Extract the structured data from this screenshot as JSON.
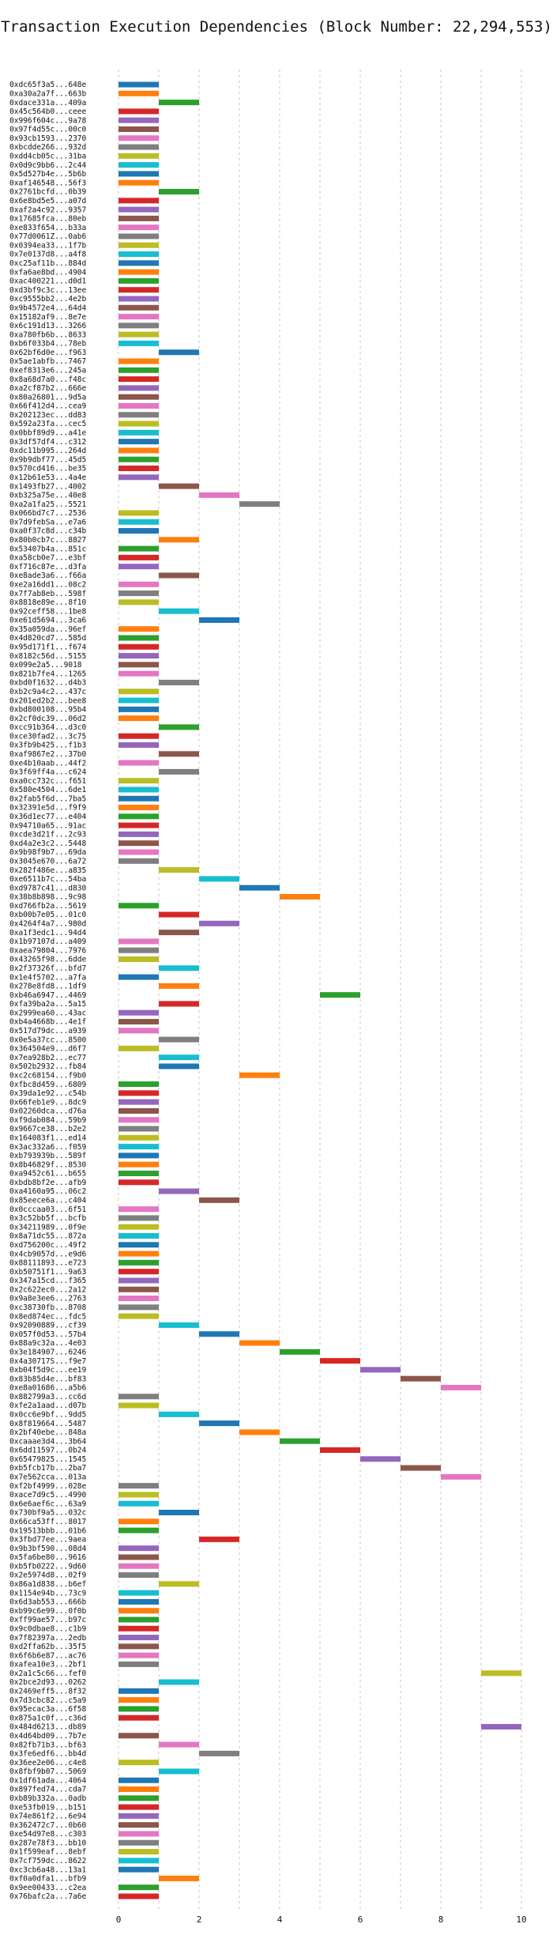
{
  "chart_data": {
    "type": "bar",
    "orientation": "horizontal-timeline",
    "title": "Transaction Execution Dependencies (Block Number: 22,294,553)",
    "xlabel": "",
    "ylabel": "",
    "xlim": [
      0,
      10
    ],
    "x_ticks": [
      0,
      2,
      4,
      6,
      8,
      10
    ],
    "grid": "vertical, dashed",
    "legend": "none",
    "colors": [
      "#1f77b4",
      "#ff7f0e",
      "#2ca02c",
      "#d62728",
      "#9467bd",
      "#8c564b",
      "#e377c2",
      "#7f7f7f",
      "#bcbd22",
      "#17becf"
    ],
    "rows": [
      {
        "tx": "0xdc65f3a5...648e",
        "start": 0
      },
      {
        "tx": "0xa30a2a7f...663b",
        "start": 0
      },
      {
        "tx": "0xdace331a...409a",
        "start": 1
      },
      {
        "tx": "0x45c564b0...ceee",
        "start": 0
      },
      {
        "tx": "0x996f604c...9a78",
        "start": 0
      },
      {
        "tx": "0x97f4d55c...00c0",
        "start": 0
      },
      {
        "tx": "0x93cb1593...2370",
        "start": 0
      },
      {
        "tx": "0xbcdde266...932d",
        "start": 0
      },
      {
        "tx": "0xdd4cb05c...31ba",
        "start": 0
      },
      {
        "tx": "0x0d9c9bb6...2c44",
        "start": 0
      },
      {
        "tx": "0x5d527b4e...5b6b",
        "start": 0
      },
      {
        "tx": "0xaf146548...56f3",
        "start": 0
      },
      {
        "tx": "0x2761bcfd...0b39",
        "start": 1
      },
      {
        "tx": "0x6e8bd5e5...a07d",
        "start": 0
      },
      {
        "tx": "0xaf2a4c92...9357",
        "start": 0
      },
      {
        "tx": "0x17685fca...80eb",
        "start": 0
      },
      {
        "tx": "0xe833f654...b33a",
        "start": 0
      },
      {
        "tx": "0x77d0061Z...0ab6",
        "start": 0
      },
      {
        "tx": "0x0394ea33...1f7b",
        "start": 0
      },
      {
        "tx": "0x7e0137d8...a4f8",
        "start": 0
      },
      {
        "tx": "0xc25af11b...884d",
        "start": 0
      },
      {
        "tx": "0xfa6ae8bd...4904",
        "start": 0
      },
      {
        "tx": "0xac400221...d0d1",
        "start": 0
      },
      {
        "tx": "0xd3bf9c3c...13ee",
        "start": 0
      },
      {
        "tx": "0xc9555bb2...4e2b",
        "start": 0
      },
      {
        "tx": "0x9b4572e4...64d4",
        "start": 0
      },
      {
        "tx": "0x15182af9...8e7e",
        "start": 0
      },
      {
        "tx": "0x6c191d13...3266",
        "start": 0
      },
      {
        "tx": "0xa780fb6b...8633",
        "start": 0
      },
      {
        "tx": "0xb6f033b4...78eb",
        "start": 0
      },
      {
        "tx": "0x62bf6d0e...f963",
        "start": 1
      },
      {
        "tx": "0x5ae1abfb...7467",
        "start": 0
      },
      {
        "tx": "0xef8313e6...245a",
        "start": 0
      },
      {
        "tx": "0x8a68d7a0...f48c",
        "start": 0
      },
      {
        "tx": "0xa2cf87b2...666e",
        "start": 0
      },
      {
        "tx": "0x80a26801...9d5a",
        "start": 0
      },
      {
        "tx": "0x66f412d4...cea9",
        "start": 0
      },
      {
        "tx": "0x202123ec...dd83",
        "start": 0
      },
      {
        "tx": "0x592a23fa...cec5",
        "start": 0
      },
      {
        "tx": "0x0bbf89d9...a41e",
        "start": 0
      },
      {
        "tx": "0x3df57df4...c312",
        "start": 0
      },
      {
        "tx": "0xdc11b995...264d",
        "start": 0
      },
      {
        "tx": "0x9b9dbf77...45d5",
        "start": 0
      },
      {
        "tx": "0x570cd416...be35",
        "start": 0
      },
      {
        "tx": "0x12b61e53...4a4e",
        "start": 0
      },
      {
        "tx": "0x1493fb27...4002",
        "start": 1
      },
      {
        "tx": "0xb325a75e...40e8",
        "start": 2
      },
      {
        "tx": "0xa2a1fa25...5521",
        "start": 3
      },
      {
        "tx": "0x066bd7c7...2536",
        "start": 0
      },
      {
        "tx": "0x7d9febSa...e7a6",
        "start": 0
      },
      {
        "tx": "0xa0f37c8d...c34b",
        "start": 0
      },
      {
        "tx": "0x80b0cb7c...8827",
        "start": 1
      },
      {
        "tx": "0x53407b4a...851c",
        "start": 0
      },
      {
        "tx": "0xa58cb0e7...e3bf",
        "start": 0
      },
      {
        "tx": "0xf716c87e...d3fa",
        "start": 0
      },
      {
        "tx": "0xe8ade3a6...f66a",
        "start": 1
      },
      {
        "tx": "0xe2a16dd1...08c2",
        "start": 0
      },
      {
        "tx": "0x7f7ab8eb...598f",
        "start": 0
      },
      {
        "tx": "0x8818e89e...8f10",
        "start": 0
      },
      {
        "tx": "0x92ceff58...1be8",
        "start": 1
      },
      {
        "tx": "0xe61d5694...3ca6",
        "start": 2
      },
      {
        "tx": "0x35a059da...96ef",
        "start": 0
      },
      {
        "tx": "0x4d820cd7...585d",
        "start": 0
      },
      {
        "tx": "0x95d171f1...f674",
        "start": 0
      },
      {
        "tx": "0x8182c56d...5155",
        "start": 0
      },
      {
        "tx": "0x099e2a5...9018",
        "start": 0
      },
      {
        "tx": "0x821b7fe4...1265",
        "start": 0
      },
      {
        "tx": "0xbd0f1632...d4b3",
        "start": 1
      },
      {
        "tx": "0xb2c9a4c2...437c",
        "start": 0
      },
      {
        "tx": "0x201ed2b2...bee8",
        "start": 0
      },
      {
        "tx": "0xbd800108...95b4",
        "start": 0
      },
      {
        "tx": "0x2cf0dc39...06d2",
        "start": 0
      },
      {
        "tx": "0xcc91b364...d3c0",
        "start": 1
      },
      {
        "tx": "0xce30fad2...3c75",
        "start": 0
      },
      {
        "tx": "0x3fb9b425...f1b3",
        "start": 0
      },
      {
        "tx": "0xaf9867e2...37b0",
        "start": 1
      },
      {
        "tx": "0xe4b10aab...44f2",
        "start": 0
      },
      {
        "tx": "0x3f69ff4a...c624",
        "start": 1
      },
      {
        "tx": "0xa0cc732c...f651",
        "start": 0
      },
      {
        "tx": "0x580e4504...6de1",
        "start": 0
      },
      {
        "tx": "0x2fab5f6d...7ba5",
        "start": 0
      },
      {
        "tx": "0x32391e5d...f9f9",
        "start": 0
      },
      {
        "tx": "0x36d1ec77...e404",
        "start": 0
      },
      {
        "tx": "0x94710a65...91ac",
        "start": 0
      },
      {
        "tx": "0xcde3d21f...2c93",
        "start": 0
      },
      {
        "tx": "0xd4a2e3c2...5448",
        "start": 0
      },
      {
        "tx": "0x9b98f9b7...69da",
        "start": 0
      },
      {
        "tx": "0x3045e670...6a72",
        "start": 0
      },
      {
        "tx": "0x282f486e...a835",
        "start": 1
      },
      {
        "tx": "0xe6511b7c...54ba",
        "start": 2
      },
      {
        "tx": "0xd9787c41...d830",
        "start": 3
      },
      {
        "tx": "0x38b8b898...9c98",
        "start": 4
      },
      {
        "tx": "0xd766fb2a...5619",
        "start": 0
      },
      {
        "tx": "0xb00b7e05...01c0",
        "start": 1
      },
      {
        "tx": "0x4264f4a7...980d",
        "start": 2
      },
      {
        "tx": "0xa1f3edc1...94d4",
        "start": 1
      },
      {
        "tx": "0x1b97107d...a409",
        "start": 0
      },
      {
        "tx": "0xaea79804...7976",
        "start": 0
      },
      {
        "tx": "0x43265f98...6dde",
        "start": 0
      },
      {
        "tx": "0x2f37326f...bfd7",
        "start": 1
      },
      {
        "tx": "0x1e4f5702...a7fa",
        "start": 0
      },
      {
        "tx": "0x278e8fd8...1df9",
        "start": 1
      },
      {
        "tx": "0xb46a6947...4469",
        "start": 5
      },
      {
        "tx": "0xfa39ba2a...5a15",
        "start": 1
      },
      {
        "tx": "0x2999ea60...43ac",
        "start": 0
      },
      {
        "tx": "0xb4a4668b...4e1f",
        "start": 0
      },
      {
        "tx": "0x517d79dc...a939",
        "start": 0
      },
      {
        "tx": "0x0e5a37cc...8500",
        "start": 1
      },
      {
        "tx": "0x364504e9...d6f7",
        "start": 0
      },
      {
        "tx": "0x7ea928b2...ec77",
        "start": 1
      },
      {
        "tx": "0x502b2932...fb84",
        "start": 1
      },
      {
        "tx": "0xc2c68154...f9b0",
        "start": 3
      },
      {
        "tx": "0xfbc8d459...6809",
        "start": 0
      },
      {
        "tx": "0x39da1e92...c54b",
        "start": 0
      },
      {
        "tx": "0x66feb1e9...8dc9",
        "start": 0
      },
      {
        "tx": "0x02260dca...d76a",
        "start": 0
      },
      {
        "tx": "0xf9dab084...59b9",
        "start": 0
      },
      {
        "tx": "0x9667ce38...b2e2",
        "start": 0
      },
      {
        "tx": "0x164083f1...ed14",
        "start": 0
      },
      {
        "tx": "0x3ac332a6...f059",
        "start": 0
      },
      {
        "tx": "0xb793939b...589f",
        "start": 0
      },
      {
        "tx": "0x8b46829f...8530",
        "start": 0
      },
      {
        "tx": "0xa9452c61...b655",
        "start": 0
      },
      {
        "tx": "0xbdb8bf2e...afb9",
        "start": 0
      },
      {
        "tx": "0xa4160a95...06c2",
        "start": 1
      },
      {
        "tx": "0x85eece6a...c404",
        "start": 2
      },
      {
        "tx": "0x0cccaa03...6f51",
        "start": 0
      },
      {
        "tx": "0x3c52bb5f...bcfb",
        "start": 0
      },
      {
        "tx": "0x34211989...0f9e",
        "start": 0
      },
      {
        "tx": "0x8a71dc55...872a",
        "start": 0
      },
      {
        "tx": "0xd756200c...49f2",
        "start": 0
      },
      {
        "tx": "0x4cb9057d...e9d6",
        "start": 0
      },
      {
        "tx": "0x88111893...e723",
        "start": 0
      },
      {
        "tx": "0xb50751f1...9a63",
        "start": 0
      },
      {
        "tx": "0x347a15cd...f365",
        "start": 0
      },
      {
        "tx": "0x2c622ec0...2a12",
        "start": 0
      },
      {
        "tx": "0x9a8e3ee6...2763",
        "start": 0
      },
      {
        "tx": "0xc38730fb...8708",
        "start": 0
      },
      {
        "tx": "0x8ed874ec...fdc5",
        "start": 0
      },
      {
        "tx": "0x92090889...cf39",
        "start": 1
      },
      {
        "tx": "0x057f0d53...57b4",
        "start": 2
      },
      {
        "tx": "0x88a9c32a...4e03",
        "start": 3
      },
      {
        "tx": "0x3e184907...6246",
        "start": 4
      },
      {
        "tx": "0x4a30717S...f9e7",
        "start": 5
      },
      {
        "tx": "0xb04f5d9c...ee19",
        "start": 6
      },
      {
        "tx": "0x83b85d4e...bf83",
        "start": 7
      },
      {
        "tx": "0xe8a01686...a5b6",
        "start": 8
      },
      {
        "tx": "0x882799a3...cc6d",
        "start": 0
      },
      {
        "tx": "0xfe2a1aad...d07b",
        "start": 0
      },
      {
        "tx": "0x0cc6e9bf...9dd5",
        "start": 1
      },
      {
        "tx": "0x8f819664...5487",
        "start": 2
      },
      {
        "tx": "0x2bf40ebe...848a",
        "start": 3
      },
      {
        "tx": "0xcaaae3d4...3b64",
        "start": 4
      },
      {
        "tx": "0x6dd11597...0b24",
        "start": 5
      },
      {
        "tx": "0x65479825...1545",
        "start": 6
      },
      {
        "tx": "0xb5fcb17b...2ba7",
        "start": 7
      },
      {
        "tx": "0x7e562cca...013a",
        "start": 8
      },
      {
        "tx": "0xf2bf4999...028e",
        "start": 0
      },
      {
        "tx": "0xace7d9c5...4990",
        "start": 0
      },
      {
        "tx": "0x6e6aef6c...63a9",
        "start": 0
      },
      {
        "tx": "0x730bf9a5...032c",
        "start": 1
      },
      {
        "tx": "0x66ca53ff...8017",
        "start": 0
      },
      {
        "tx": "0x19513bbb...01b6",
        "start": 0
      },
      {
        "tx": "0x3fbd77ee...9aea",
        "start": 2
      },
      {
        "tx": "0x9b3bf590...08d4",
        "start": 0
      },
      {
        "tx": "0x5fa6be80...9616",
        "start": 0
      },
      {
        "tx": "0xb5fb0222...9d60",
        "start": 0
      },
      {
        "tx": "0x2e5974d8...02f9",
        "start": 0
      },
      {
        "tx": "0x86a1d838...b6ef",
        "start": 1
      },
      {
        "tx": "0x1154e94b...73c9",
        "start": 0
      },
      {
        "tx": "0x6d3ab553...666b",
        "start": 0
      },
      {
        "tx": "0xb99c6e99...0f0b",
        "start": 0
      },
      {
        "tx": "0xff99ae57...b97c",
        "start": 0
      },
      {
        "tx": "0x9c0dbae8...c1b9",
        "start": 0
      },
      {
        "tx": "0x7f82397a...2edb",
        "start": 0
      },
      {
        "tx": "0xd2ffa62b...35f5",
        "start": 0
      },
      {
        "tx": "0x6f6b6e87...ac76",
        "start": 0
      },
      {
        "tx": "0xafea10e3...2bf1",
        "start": 0
      },
      {
        "tx": "0x2a1c5c66...fef0",
        "start": 9
      },
      {
        "tx": "0x2bce2d93...0262",
        "start": 1
      },
      {
        "tx": "0x2469eff5...8f32",
        "start": 0
      },
      {
        "tx": "0x7d3cbc82...c5a9",
        "start": 0
      },
      {
        "tx": "0x95ecac3a...6f58",
        "start": 0
      },
      {
        "tx": "0x875a1c0f...c36d",
        "start": 0
      },
      {
        "tx": "0x484d6213...db89",
        "start": 9
      },
      {
        "tx": "0x4d64bd09...7b7e",
        "start": 0
      },
      {
        "tx": "0x82fb71b3...bf63",
        "start": 1
      },
      {
        "tx": "0x3fe6edf6...bb4d",
        "start": 2
      },
      {
        "tx": "0x36ee2e06...c4e8",
        "start": 0
      },
      {
        "tx": "0x8fbf9b07...5069",
        "start": 1
      },
      {
        "tx": "0x1df61ada...4064",
        "start": 0
      },
      {
        "tx": "0x897fed74...cda7",
        "start": 0
      },
      {
        "tx": "0xb89b332a...0adb",
        "start": 0
      },
      {
        "tx": "0xe53fb019...b151",
        "start": 0
      },
      {
        "tx": "0x74e861f2...6e94",
        "start": 0
      },
      {
        "tx": "0x362472c7...0b60",
        "start": 0
      },
      {
        "tx": "0xe54d97e8...c303",
        "start": 0
      },
      {
        "tx": "0x287e78f3...bb10",
        "start": 0
      },
      {
        "tx": "0x1f599eaf...8ebf",
        "start": 0
      },
      {
        "tx": "0x7cf759dc...8622",
        "start": 0
      },
      {
        "tx": "0xc3cb6a48...13a1",
        "start": 0
      },
      {
        "tx": "0xf0a0dfa1...bfb9",
        "start": 1
      },
      {
        "tx": "0x9ee00433...c2ea",
        "start": 0
      },
      {
        "tx": "0x76bafc2a...7a6e",
        "start": 0
      }
    ]
  }
}
